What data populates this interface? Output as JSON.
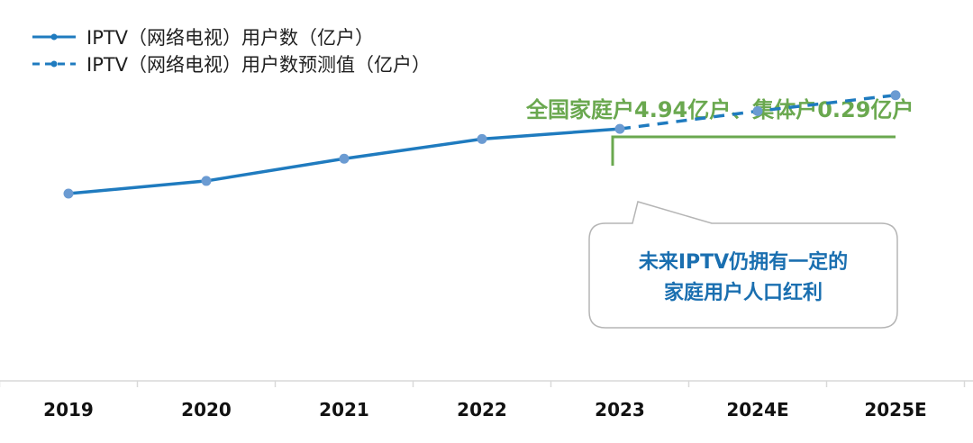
{
  "chart_data": {
    "type": "line",
    "title": "",
    "xlabel": "",
    "ylabel": "",
    "categories": [
      "2019",
      "2020",
      "2021",
      "2022",
      "2023",
      "2024E",
      "2025E"
    ],
    "ylim": [
      0,
      6
    ],
    "grid": false,
    "legend_position": "top-left",
    "series": [
      {
        "name": "IPTV（网络电视）用户数（亿户）",
        "style": "solid",
        "color": "#1f7bbf",
        "values": [
          2.95,
          3.15,
          3.5,
          3.81,
          3.97,
          null,
          null
        ]
      },
      {
        "name": "IPTV（网络电视）用户数预测值（亿户）",
        "style": "dashed",
        "color": "#1f7bbf",
        "values": [
          null,
          null,
          null,
          null,
          3.97,
          4.25,
          4.5
        ]
      }
    ],
    "annotations": {
      "headline": "全国家庭户4.94亿户、集体户0.29亿户",
      "headline_color": "#6aa84f",
      "callout_lines": [
        "未来IPTV仍拥有一定的",
        "家庭用户人口红利"
      ],
      "callout_color": "#1a6fb0"
    },
    "marker_color": "#6b9bd2"
  }
}
